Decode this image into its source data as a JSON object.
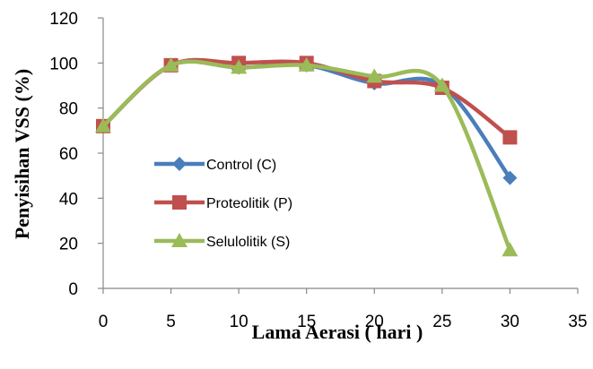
{
  "chart_data": {
    "type": "line",
    "xlabel": "Lama Aerasi ( hari )",
    "ylabel": "Penyisihan VSS (%)",
    "xlim": [
      0,
      35
    ],
    "ylim": [
      0,
      120
    ],
    "xticks": [
      0,
      5,
      10,
      15,
      20,
      25,
      30,
      35
    ],
    "yticks": [
      0,
      20,
      40,
      60,
      80,
      100,
      120
    ],
    "grid": false,
    "legend_position": "left-center",
    "smoothed": true,
    "x": [
      0,
      5,
      10,
      15,
      20,
      25,
      30
    ],
    "series": [
      {
        "name": "Control (C)",
        "values": [
          72,
          99,
          98,
          99,
          91,
          90,
          49
        ],
        "color": "#4a7ebb",
        "marker": "diamond"
      },
      {
        "name": "Proteolitik (P)",
        "values": [
          72,
          99,
          100,
          100,
          92,
          89,
          67
        ],
        "color": "#c0504d",
        "marker": "square"
      },
      {
        "name": "Selulolitik (S)",
        "values": [
          72,
          99,
          98,
          99,
          94,
          90,
          17
        ],
        "color": "#9bbb59",
        "marker": "triangle"
      }
    ]
  }
}
